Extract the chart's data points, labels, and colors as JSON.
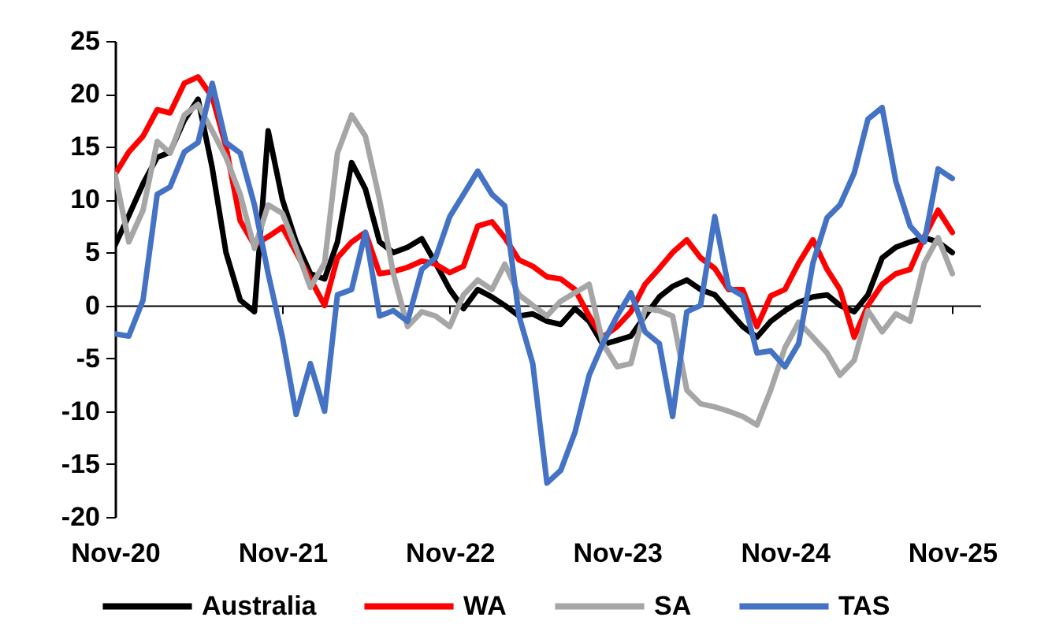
{
  "chart_data": {
    "type": "line",
    "x": [
      "2020-11",
      "2020-12",
      "2021-01",
      "2021-02",
      "2021-03",
      "2021-04",
      "2021-05",
      "2021-06",
      "2021-07",
      "2021-08",
      "2021-09",
      "2021-10",
      "2021-11",
      "2021-12",
      "2022-01",
      "2022-02",
      "2022-03",
      "2022-04",
      "2022-05",
      "2022-06",
      "2022-07",
      "2022-08",
      "2022-09",
      "2022-10",
      "2022-11",
      "2022-12",
      "2023-01",
      "2023-02",
      "2023-03",
      "2023-04",
      "2023-05",
      "2023-06",
      "2023-07",
      "2023-08",
      "2023-09",
      "2023-10",
      "2023-11",
      "2023-12",
      "2024-01",
      "2024-02",
      "2024-03",
      "2024-04",
      "2024-05",
      "2024-06",
      "2024-07",
      "2024-08",
      "2024-09",
      "2024-10",
      "2024-11",
      "2024-12",
      "2025-01",
      "2025-02",
      "2025-03",
      "2025-04",
      "2025-05",
      "2025-06",
      "2025-07",
      "2025-08",
      "2025-09",
      "2025-10",
      "2025-11"
    ],
    "series": [
      {
        "name": "Australia",
        "color": "#000000",
        "values": [
          5.7,
          8.5,
          11.5,
          14,
          14.5,
          17.5,
          19.5,
          13,
          5,
          0.5,
          -0.6,
          16.5,
          10,
          6,
          3,
          2.5,
          6,
          13.5,
          11,
          6,
          5,
          5.5,
          6.3,
          4,
          1.5,
          -0.3,
          1.5,
          0.8,
          0,
          -1,
          -0.8,
          -1.5,
          -1.8,
          -0.3,
          -1.5,
          -3.7,
          -3.3,
          -2.9,
          -1,
          0.8,
          1.8,
          2.4,
          1.5,
          1,
          -0.5,
          -2,
          -3,
          -1.5,
          -0.5,
          0.3,
          0.8,
          1,
          0,
          -0.6,
          1,
          4.5,
          5.5,
          6,
          6.4,
          6,
          5
        ]
      },
      {
        "name": "WA",
        "color": "#ff0000",
        "values": [
          12.4,
          14.5,
          16,
          18.5,
          18.2,
          21,
          21.6,
          19.7,
          15,
          8,
          5.7,
          6.5,
          7.4,
          5,
          2.5,
          0,
          4.5,
          6,
          6.9,
          3,
          3.2,
          3.6,
          4.2,
          3.9,
          3.1,
          3.7,
          7.5,
          7.9,
          6.4,
          4.3,
          3.7,
          2.7,
          2.5,
          1.5,
          -1,
          -3,
          -2,
          -0.6,
          2,
          3.5,
          5,
          6.2,
          4.5,
          3.5,
          1.5,
          1.5,
          -2,
          0.9,
          1.5,
          4,
          6.2,
          3.4,
          1.5,
          -3,
          0,
          2,
          3,
          3.4,
          6.5,
          9,
          6.9
        ]
      },
      {
        "name": "SA",
        "color": "#a6a6a6",
        "values": [
          12.4,
          6,
          9,
          15.5,
          14.4,
          18,
          19,
          16.5,
          14,
          10.5,
          5.4,
          9.5,
          8.7,
          5.4,
          1.7,
          4,
          14.4,
          18,
          16,
          10,
          3,
          -2,
          -0.6,
          -1,
          -2,
          1,
          2.4,
          1.5,
          3.9,
          1,
          0,
          -1,
          0.4,
          1.2,
          2,
          -3.6,
          -5.8,
          -5.5,
          -0.3,
          -0.5,
          -1,
          -8,
          -9.3,
          -9.6,
          -10,
          -10.5,
          -11.3,
          -8,
          -4,
          -1.6,
          -3,
          -4.5,
          -6.6,
          -5.2,
          -0.5,
          -2.5,
          -0.8,
          -1.5,
          4,
          6.4,
          3
        ]
      },
      {
        "name": "TAS",
        "color": "#4472c4",
        "values": [
          -2.7,
          -2.9,
          0.5,
          10.5,
          11.2,
          14.5,
          15.4,
          21,
          15.4,
          14.4,
          9.5,
          3,
          -3,
          -10.3,
          -5.5,
          -10,
          1,
          1.5,
          6.9,
          -1,
          -0.5,
          -1.5,
          3.4,
          4.5,
          8.4,
          10.5,
          12.7,
          10.5,
          9.4,
          -1,
          -5.5,
          -16.8,
          -15.6,
          -12,
          -6.6,
          -3.6,
          -1,
          1.2,
          -2.5,
          -3.6,
          -10.5,
          -0.6,
          0,
          8.4,
          1.7,
          0.9,
          -4.5,
          -4.3,
          -5.8,
          -3.6,
          4,
          8.3,
          9.5,
          12.5,
          17.6,
          18.7,
          11.7,
          7.5,
          6,
          12.9,
          12
        ]
      }
    ],
    "xlim": [
      "2020-11",
      "2026-01"
    ],
    "xticks": [
      {
        "value": "2020-11",
        "label": "Nov-20"
      },
      {
        "value": "2021-11",
        "label": "Nov-21"
      },
      {
        "value": "2022-11",
        "label": "Nov-22"
      },
      {
        "value": "2023-11",
        "label": "Nov-23"
      },
      {
        "value": "2024-11",
        "label": "Nov-24"
      },
      {
        "value": "2025-11",
        "label": "Nov-25"
      }
    ],
    "ylim": [
      -20,
      25
    ],
    "yticks": [
      -20,
      -15,
      -10,
      -5,
      0,
      5,
      10,
      15,
      20,
      25
    ],
    "legend": "bottom",
    "marker": "none",
    "line_style": "solid"
  }
}
